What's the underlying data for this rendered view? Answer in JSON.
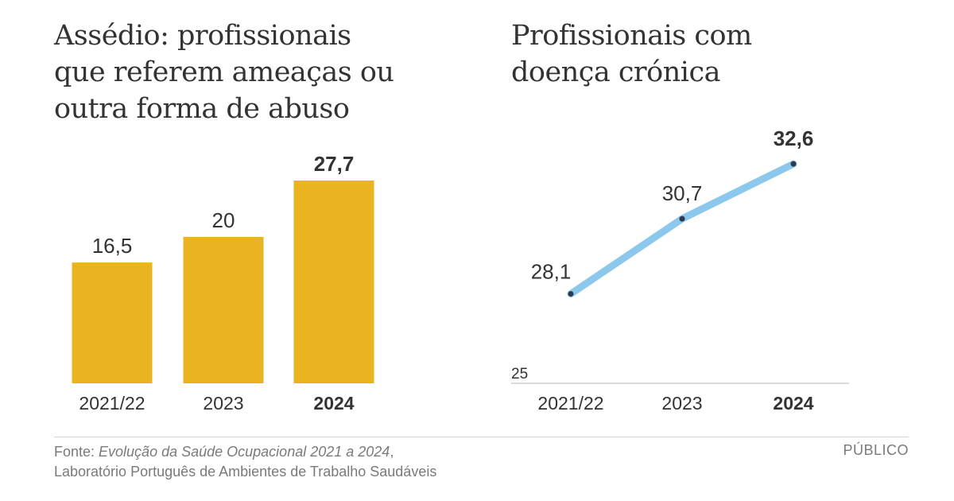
{
  "colors": {
    "bar": "#EAB320",
    "line": "#8CC8EC",
    "point": "#2E3A4F",
    "text": "#333333",
    "muted": "#7a7a7a"
  },
  "chart_data": [
    {
      "type": "bar",
      "title": "Assédio: profissionais\nque referem ameaças ou\noutra forma de abuso",
      "categories": [
        "2021/22",
        "2023",
        "2024"
      ],
      "values": [
        16.5,
        20,
        27.7
      ],
      "value_labels": [
        "16,5",
        "20",
        "27,7"
      ],
      "highlight_index": 2
    },
    {
      "type": "line",
      "title": "Profissionais com\ndoença crónica",
      "categories": [
        "2021/22",
        "2023",
        "2024"
      ],
      "values": [
        28.1,
        30.7,
        32.6
      ],
      "value_labels": [
        "28,1",
        "30,7",
        "32,6"
      ],
      "y_min": 25,
      "y_min_label": "25",
      "highlight_index": 2
    }
  ],
  "footer": {
    "source_prefix": "Fonte: ",
    "source_title": "Evolução da Saúde Ocupacional 2021 a 2024",
    "source_suffix": ",",
    "source_line2": "Laboratório Português de Ambientes de Trabalho Saudáveis",
    "brand": "PÚBLICO"
  }
}
